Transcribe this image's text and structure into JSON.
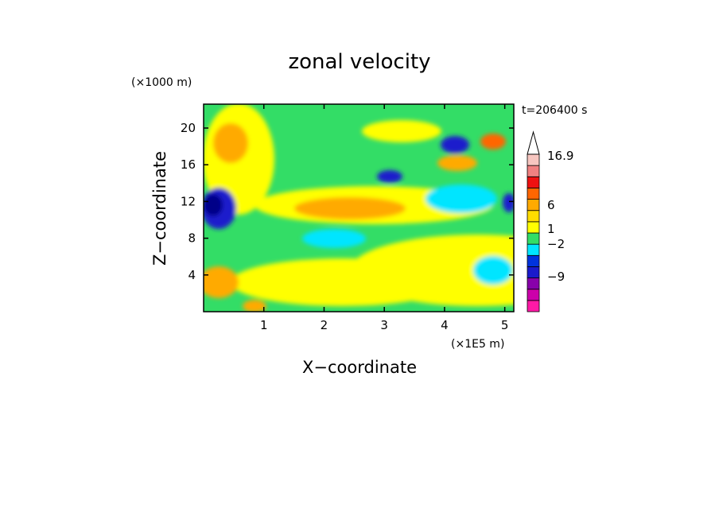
{
  "chart_data": {
    "type": "heatmap",
    "title": "zonal velocity",
    "xlabel": "X−coordinate",
    "ylabel": "Z−coordinate",
    "x_unit": "(×1E5 m)",
    "y_unit": "(×1000 m)",
    "time_label": "t=206400 s",
    "xlim": [
      0,
      5.15
    ],
    "ylim": [
      0,
      22.6
    ],
    "x_ticks": [
      1,
      2,
      3,
      4,
      5
    ],
    "y_ticks": [
      4,
      8,
      12,
      16,
      20
    ],
    "colorbar": {
      "labels": [
        {
          "text": "16.9",
          "value": 16.9
        },
        {
          "text": "6",
          "value": 6
        },
        {
          "text": "1",
          "value": 1
        },
        {
          "text": "−2",
          "value": -2
        },
        {
          "text": "−9",
          "value": -9
        }
      ],
      "colors": [
        "#ff1aa6",
        "#cc00aa",
        "#8800aa",
        "#1a1acc",
        "#0033dd",
        "#00e5ff",
        "#33dd66",
        "#ffff00",
        "#ffdd00",
        "#ffaa00",
        "#ff6600",
        "#ee1111",
        "#f08080",
        "#f7c6c0"
      ]
    }
  }
}
